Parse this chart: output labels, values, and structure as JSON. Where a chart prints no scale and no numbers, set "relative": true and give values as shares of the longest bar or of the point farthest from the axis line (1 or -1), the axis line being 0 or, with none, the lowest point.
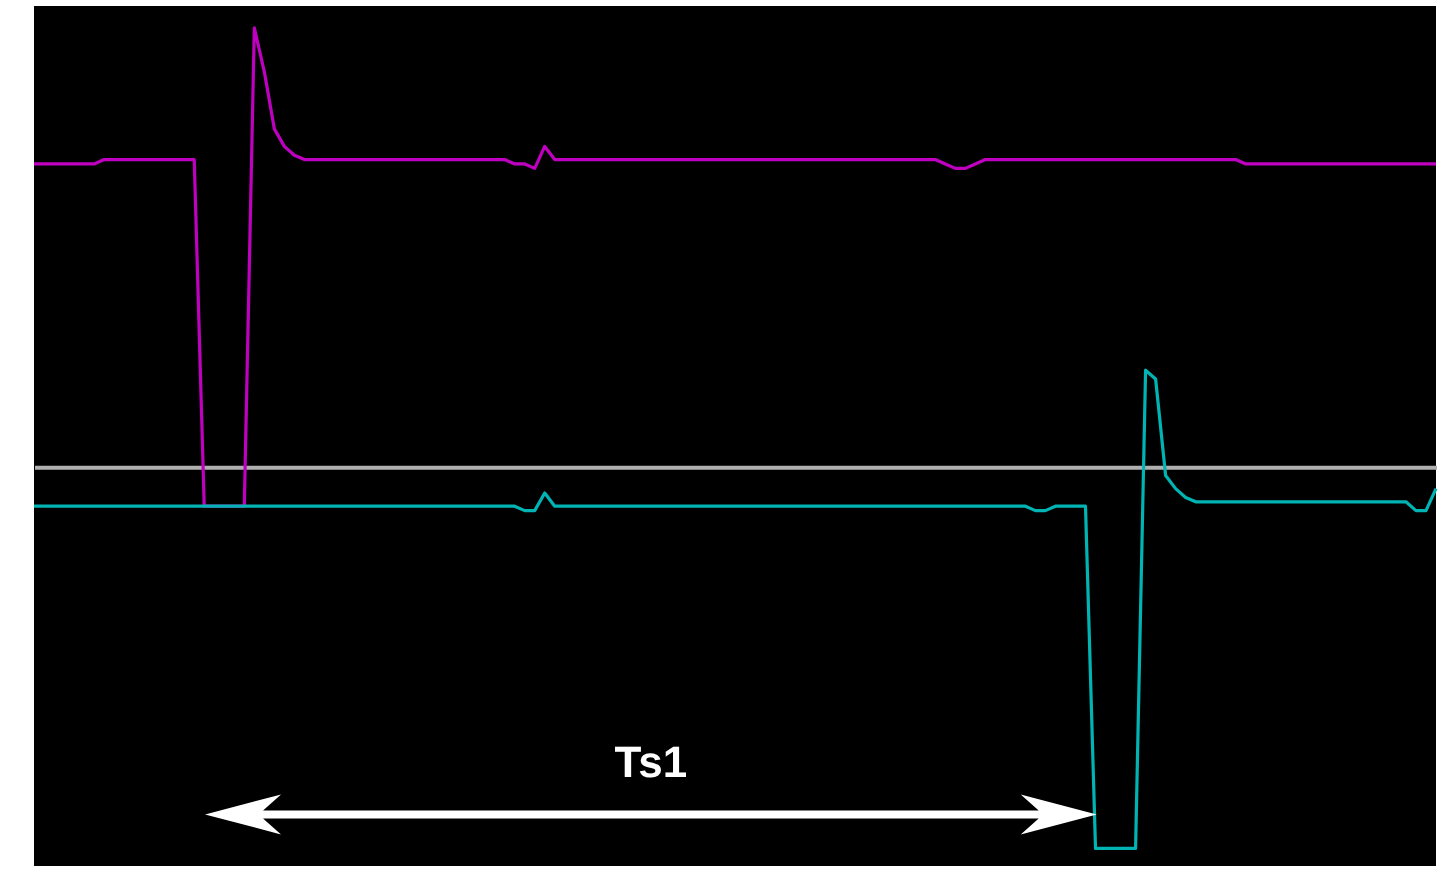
{
  "chart_data": {
    "type": "line",
    "relative": true,
    "categories": [
      null,
      null,
      null,
      null,
      null,
      null,
      null,
      null,
      null,
      null,
      null,
      null,
      null,
      null,
      null,
      null,
      null,
      null,
      null,
      null,
      null,
      null,
      null,
      null,
      null,
      null,
      null,
      null,
      null,
      null,
      null,
      null,
      null,
      null,
      null,
      null,
      null,
      null,
      null,
      null,
      null,
      null,
      null,
      null,
      null,
      null,
      null,
      null,
      null,
      null,
      null,
      null,
      null,
      null,
      null,
      null,
      null,
      null,
      null,
      null,
      null,
      null,
      null,
      null,
      null,
      null,
      null,
      null,
      null,
      null,
      null,
      null,
      null,
      null,
      null,
      null,
      null,
      null,
      null,
      null,
      null,
      null,
      null,
      null,
      null,
      null,
      null,
      null,
      null,
      null,
      null,
      null,
      null,
      null,
      null,
      null,
      null,
      null,
      null,
      null,
      null,
      null,
      null,
      null,
      null,
      null,
      null,
      null,
      null,
      null,
      null,
      null,
      null,
      null,
      null,
      null,
      null,
      null,
      null,
      null,
      null,
      null,
      null,
      null,
      null,
      null,
      null,
      null,
      null,
      null,
      null,
      null,
      null,
      null,
      null,
      null,
      null,
      null,
      null,
      null,
      null
    ],
    "series": [
      {
        "color": "#c000c0",
        "values": [
          0.69,
          0.69,
          0.69,
          0.69,
          0.69,
          0.69,
          0.69,
          0.7,
          0.7,
          0.7,
          0.7,
          0.7,
          0.7,
          0.7,
          0.7,
          0.7,
          0.7,
          -0.09,
          -0.09,
          -0.09,
          -0.09,
          -0.09,
          1.0,
          0.9,
          0.77,
          0.73,
          0.71,
          0.7,
          0.7,
          0.7,
          0.7,
          0.7,
          0.7,
          0.7,
          0.7,
          0.7,
          0.7,
          0.7,
          0.7,
          0.7,
          0.7,
          0.7,
          0.7,
          0.7,
          0.7,
          0.7,
          0.7,
          0.7,
          0.69,
          0.69,
          0.68,
          0.73,
          0.7,
          0.7,
          0.7,
          0.7,
          0.7,
          0.7,
          0.7,
          0.7,
          0.7,
          0.7,
          0.7,
          0.7,
          0.7,
          0.7,
          0.7,
          0.7,
          0.7,
          0.7,
          0.7,
          0.7,
          0.7,
          0.7,
          0.7,
          0.7,
          0.7,
          0.7,
          0.7,
          0.7,
          0.7,
          0.7,
          0.7,
          0.7,
          0.7,
          0.7,
          0.7,
          0.7,
          0.7,
          0.7,
          0.7,
          0.69,
          0.68,
          0.68,
          0.69,
          0.7,
          0.7,
          0.7,
          0.7,
          0.7,
          0.7,
          0.7,
          0.7,
          0.7,
          0.7,
          0.7,
          0.7,
          0.7,
          0.7,
          0.7,
          0.7,
          0.7,
          0.7,
          0.7,
          0.7,
          0.7,
          0.7,
          0.7,
          0.7,
          0.7,
          0.7,
          0.69,
          0.69,
          0.69,
          0.69,
          0.69,
          0.69,
          0.69,
          0.69,
          0.69,
          0.69,
          0.69,
          0.69,
          0.69,
          0.69,
          0.69,
          0.69,
          0.69,
          0.69,
          0.69,
          0.69
        ]
      },
      {
        "color": "#00b4b4",
        "values": [
          -0.09,
          -0.09,
          -0.09,
          -0.09,
          -0.09,
          -0.09,
          -0.09,
          -0.09,
          -0.09,
          -0.09,
          -0.09,
          -0.09,
          -0.09,
          -0.09,
          -0.09,
          -0.09,
          -0.09,
          -0.09,
          -0.09,
          -0.09,
          -0.09,
          -0.09,
          -0.09,
          -0.09,
          -0.09,
          -0.09,
          -0.09,
          -0.09,
          -0.09,
          -0.09,
          -0.09,
          -0.09,
          -0.09,
          -0.09,
          -0.09,
          -0.09,
          -0.09,
          -0.09,
          -0.09,
          -0.09,
          -0.09,
          -0.09,
          -0.09,
          -0.09,
          -0.09,
          -0.09,
          -0.09,
          -0.09,
          -0.09,
          -0.1,
          -0.1,
          -0.06,
          -0.09,
          -0.09,
          -0.09,
          -0.09,
          -0.09,
          -0.09,
          -0.09,
          -0.09,
          -0.09,
          -0.09,
          -0.09,
          -0.09,
          -0.09,
          -0.09,
          -0.09,
          -0.09,
          -0.09,
          -0.09,
          -0.09,
          -0.09,
          -0.09,
          -0.09,
          -0.09,
          -0.09,
          -0.09,
          -0.09,
          -0.09,
          -0.09,
          -0.09,
          -0.09,
          -0.09,
          -0.09,
          -0.09,
          -0.09,
          -0.09,
          -0.09,
          -0.09,
          -0.09,
          -0.09,
          -0.09,
          -0.09,
          -0.09,
          -0.09,
          -0.09,
          -0.09,
          -0.09,
          -0.09,
          -0.09,
          -0.1,
          -0.1,
          -0.09,
          -0.09,
          -0.09,
          -0.09,
          -0.87,
          -0.87,
          -0.87,
          -0.87,
          -0.87,
          0.22,
          0.2,
          -0.02,
          -0.05,
          -0.07,
          -0.08,
          -0.08,
          -0.08,
          -0.08,
          -0.08,
          -0.08,
          -0.08,
          -0.08,
          -0.08,
          -0.08,
          -0.08,
          -0.08,
          -0.08,
          -0.08,
          -0.08,
          -0.08,
          -0.08,
          -0.08,
          -0.08,
          -0.08,
          -0.08,
          -0.08,
          -0.1,
          -0.1,
          -0.05
        ]
      }
    ],
    "annotations": [
      "Ts1"
    ]
  }
}
